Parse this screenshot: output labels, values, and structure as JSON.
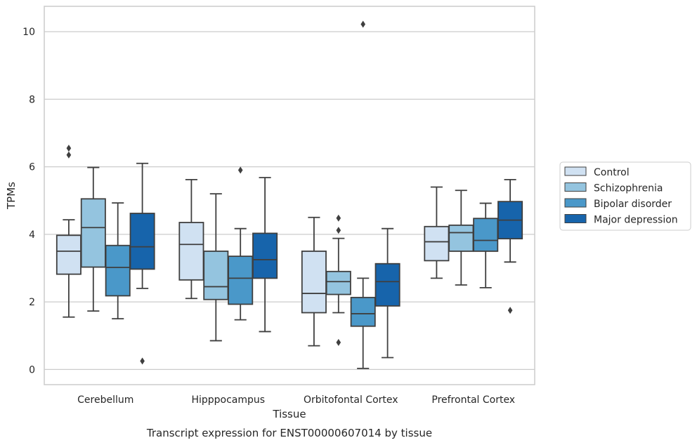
{
  "chart_data": {
    "type": "box",
    "title": "Transcript expression for ENST00000607014 by tissue",
    "xlabel": "Tissue",
    "ylabel": "TPMs",
    "ylim": [
      -0.45,
      10.75
    ],
    "yticks": [
      0,
      2,
      4,
      6,
      8,
      10
    ],
    "grid": true,
    "legend_position": "right",
    "categories": [
      "Cerebellum",
      "Hipppocampus",
      "Orbitofontal Cortex",
      "Prefrontal Cortex"
    ],
    "series": [
      {
        "name": "Control",
        "color": "#d0e1f2",
        "boxes": [
          {
            "whisker_low": 1.55,
            "q1": 2.82,
            "median": 3.5,
            "q3": 3.97,
            "whisker_high": 4.43,
            "outliers": [
              6.35,
              6.55
            ]
          },
          {
            "whisker_low": 2.1,
            "q1": 2.65,
            "median": 3.7,
            "q3": 4.35,
            "whisker_high": 5.62,
            "outliers": []
          },
          {
            "whisker_low": 0.7,
            "q1": 1.68,
            "median": 2.25,
            "q3": 3.5,
            "whisker_high": 4.5,
            "outliers": []
          },
          {
            "whisker_low": 2.7,
            "q1": 3.22,
            "median": 3.78,
            "q3": 4.23,
            "whisker_high": 5.4,
            "outliers": []
          }
        ]
      },
      {
        "name": "Schizophrenia",
        "color": "#94c4df",
        "boxes": [
          {
            "whisker_low": 1.73,
            "q1": 3.03,
            "median": 4.2,
            "q3": 5.05,
            "whisker_high": 5.98,
            "outliers": []
          },
          {
            "whisker_low": 0.85,
            "q1": 2.07,
            "median": 2.45,
            "q3": 3.5,
            "whisker_high": 5.2,
            "outliers": []
          },
          {
            "whisker_low": 1.68,
            "q1": 2.22,
            "median": 2.6,
            "q3": 2.9,
            "whisker_high": 3.88,
            "outliers": [
              0.8,
              4.12,
              4.48
            ]
          },
          {
            "whisker_low": 2.5,
            "q1": 3.5,
            "median": 4.05,
            "q3": 4.27,
            "whisker_high": 5.3,
            "outliers": []
          }
        ]
      },
      {
        "name": "Bipolar disorder",
        "color": "#4a98c9",
        "boxes": [
          {
            "whisker_low": 1.5,
            "q1": 2.18,
            "median": 3.02,
            "q3": 3.67,
            "whisker_high": 4.93,
            "outliers": []
          },
          {
            "whisker_low": 1.47,
            "q1": 1.93,
            "median": 2.7,
            "q3": 3.35,
            "whisker_high": 4.17,
            "outliers": [
              5.9
            ]
          },
          {
            "whisker_low": 0.03,
            "q1": 1.28,
            "median": 1.65,
            "q3": 2.13,
            "whisker_high": 2.7,
            "outliers": [
              10.22
            ]
          },
          {
            "whisker_low": 2.42,
            "q1": 3.5,
            "median": 3.82,
            "q3": 4.47,
            "whisker_high": 4.92,
            "outliers": []
          }
        ]
      },
      {
        "name": "Major depression",
        "color": "#1764ab",
        "boxes": [
          {
            "whisker_low": 2.4,
            "q1": 2.97,
            "median": 3.63,
            "q3": 4.62,
            "whisker_high": 6.1,
            "outliers": [
              0.25
            ]
          },
          {
            "whisker_low": 1.12,
            "q1": 2.7,
            "median": 3.25,
            "q3": 4.03,
            "whisker_high": 5.68,
            "outliers": []
          },
          {
            "whisker_low": 0.35,
            "q1": 1.88,
            "median": 2.6,
            "q3": 3.13,
            "whisker_high": 4.17,
            "outliers": []
          },
          {
            "whisker_low": 3.18,
            "q1": 3.87,
            "median": 4.42,
            "q3": 4.97,
            "whisker_high": 5.62,
            "outliers": [
              1.75
            ]
          }
        ]
      }
    ]
  }
}
